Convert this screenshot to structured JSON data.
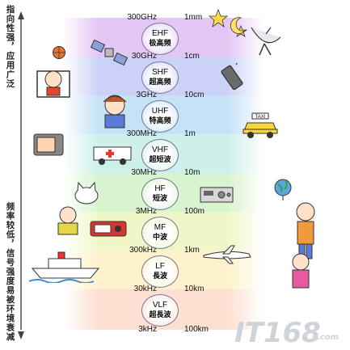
{
  "side_labels": {
    "top": "指向性强，应用广泛",
    "bottom": "频率较低，信号强度易被环境衰减"
  },
  "frequency_ticks": [
    "300GHz",
    "30GHz",
    "3GHz",
    "300MHz",
    "30MHz",
    "3MHz",
    "300kHz",
    "30kHz",
    "3kHz"
  ],
  "wavelength_ticks": [
    "1mm",
    "1cm",
    "10cm",
    "1m",
    "10m",
    "100m",
    "1km",
    "10km",
    "100km"
  ],
  "bands": [
    {
      "abbr": "EHF",
      "name": "极高频",
      "color": "#e4c6f4"
    },
    {
      "abbr": "SHF",
      "name": "超高频",
      "color": "#ccd2f7"
    },
    {
      "abbr": "UHF",
      "name": "特高频",
      "color": "#c6e2f6"
    },
    {
      "abbr": "VHF",
      "name": "超短波",
      "color": "#cdf0ea"
    },
    {
      "abbr": "HF",
      "name": "短波",
      "color": "#d8f4cf"
    },
    {
      "abbr": "MF",
      "name": "中波",
      "color": "#eff7c9"
    },
    {
      "abbr": "LF",
      "name": "長波",
      "color": "#fdf2cc"
    },
    {
      "abbr": "VLF",
      "name": "超長波",
      "color": "#fde0d1"
    }
  ],
  "taxi_sign": "TAXI",
  "watermark": {
    "main": "IT168",
    "sub": ".com"
  },
  "icons": [
    "star-icon",
    "moon-icon",
    "satellite-dish-icon",
    "satellite-icon",
    "basketball-icon",
    "mobile-phone-icon",
    "taxi-icon",
    "ambulance-icon",
    "television-icon",
    "cat-icon",
    "radio-icon",
    "transceiver-icon",
    "globe-icon",
    "ship-icon",
    "airplane-icon"
  ]
}
